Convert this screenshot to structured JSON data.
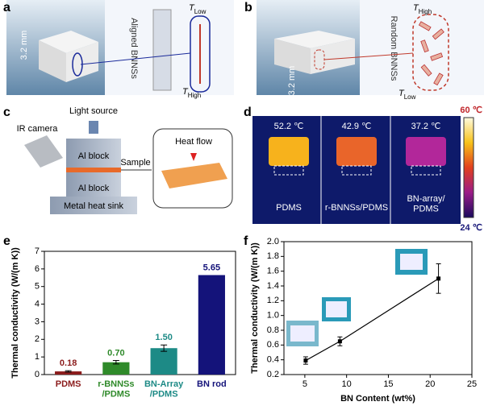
{
  "panels": {
    "a": {
      "label": "a",
      "thickness": "3.2 mm",
      "aligned": "Aligned BNNSs",
      "t_low": {
        "symbol": "T",
        "sub": "Low"
      },
      "t_high": {
        "symbol": "T",
        "sub": "High"
      }
    },
    "b": {
      "label": "b",
      "thickness": "3.2 mm",
      "random": "Random BNNSs",
      "t_high": {
        "symbol": "T",
        "sub": "High"
      },
      "t_low": {
        "symbol": "T",
        "sub": "Low"
      }
    },
    "c": {
      "label": "c",
      "light": "Light source",
      "camera": "IR camera",
      "sample": "Sample",
      "block_top": "Al block",
      "block_bottom": "Al block",
      "sink": "Metal heat sink",
      "heat_flow": "Heat flow"
    },
    "d": {
      "label": "d",
      "temps": [
        "52.2 ℃",
        "42.9 ℃",
        "37.2 ℃"
      ],
      "names": [
        "PDMS",
        "r-BNNSs/PDMS",
        "BN-array/\nPDMS"
      ],
      "scale_max": "60 ℃",
      "scale_min": "24 ℃"
    },
    "e": {
      "label": "e"
    },
    "f": {
      "label": "f"
    }
  },
  "chart_data": [
    {
      "type": "bar",
      "ylabel": "Thermal conductivity (W/(m K))",
      "categories": [
        "PDMS",
        "r-BNNSs\n/PDMS",
        "BN-Array\n/PDMS",
        "BN rod"
      ],
      "values": [
        0.18,
        0.7,
        1.5,
        5.65
      ],
      "value_labels": [
        "0.18",
        "0.70",
        "1.50",
        "5.65"
      ],
      "errors": [
        0.04,
        0.1,
        0.18,
        null
      ],
      "colors": [
        "#8b1c1c",
        "#2f8a2a",
        "#1d8a86",
        "#14137a"
      ],
      "ylim": [
        0,
        7
      ],
      "yticks": [
        0,
        1,
        2,
        3,
        4,
        5,
        6,
        7
      ]
    },
    {
      "type": "line",
      "xlabel": "BN Content (wt%)",
      "ylabel": "Thermal conductivity (W/(m K))",
      "x": [
        5.1,
        9.2,
        21
      ],
      "values": [
        0.39,
        0.65,
        1.5
      ],
      "errors": [
        0.05,
        0.06,
        0.2
      ],
      "color": "#000000",
      "xlim": [
        2.5,
        25
      ],
      "xticks": [
        5,
        10,
        15,
        20,
        25
      ],
      "ylim": [
        0.2,
        2.0
      ],
      "yticks": [
        0.2,
        0.4,
        0.6,
        0.8,
        {
          "value": 1.0,
          "label": "1.0"
        },
        1.2,
        1.4,
        1.6,
        1.8,
        {
          "value": 2.0,
          "label": "2.0"
        }
      ]
    }
  ]
}
